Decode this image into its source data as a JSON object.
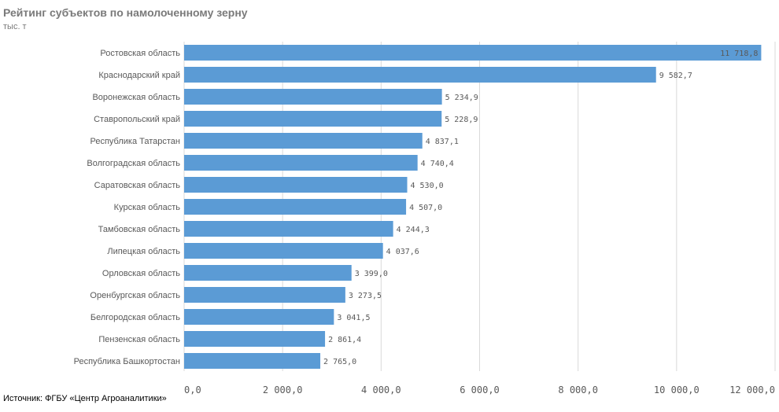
{
  "chart_data": {
    "type": "bar",
    "orientation": "horizontal",
    "title": "Рейтинг субъектов по намолоченному зерну",
    "subtitle": "тыс. т",
    "source": "Источник: ФГБУ «Центр Агроаналитики»",
    "categories": [
      "Ростовская область",
      "Краснодарский край",
      "Воронежская область",
      "Ставропольский край",
      "Республика Татарстан",
      "Волгоградская область",
      "Саратовская область",
      "Курская область",
      "Тамбовская область",
      "Липецкая область",
      "Орловская область",
      "Оренбургская область",
      "Белгородская область",
      "Пензенская область",
      "Республика Башкортостан"
    ],
    "values": [
      11718.8,
      9582.7,
      5234.9,
      5228.9,
      4837.1,
      4740.4,
      4530.0,
      4507.0,
      4244.3,
      4037.6,
      3399.0,
      3273.5,
      3041.5,
      2861.4,
      2765.0
    ],
    "value_labels": [
      "11 718,8",
      "9 582,7",
      "5 234,9",
      "5 228,9",
      "4 837,1",
      "4 740,4",
      "4 530,0",
      "4 507,0",
      "4 244,3",
      "4 037,6",
      "3 399,0",
      "3 273,5",
      "3 041,5",
      "2 861,4",
      "2 765,0"
    ],
    "xlim": [
      0,
      12000
    ],
    "x_ticks": [
      0,
      2000,
      4000,
      6000,
      8000,
      10000,
      12000
    ],
    "x_tick_labels": [
      "0,0",
      "2 000,0",
      "4 000,0",
      "6 000,0",
      "8 000,0",
      "10 000,0",
      "12 000,0"
    ],
    "grid": true,
    "bar_color": "#5b9bd5",
    "grid_color": "#d9d9d9"
  }
}
